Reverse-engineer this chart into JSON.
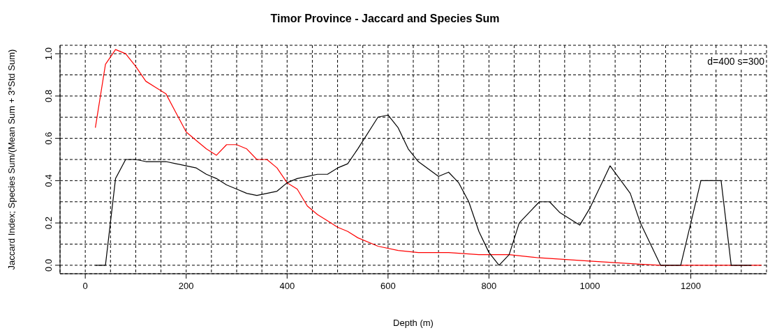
{
  "chart_data": {
    "type": "line",
    "title": "Timor Province - Jaccard and Species Sum",
    "xlabel": "Depth (m)",
    "ylabel": "Jaccard Index; Species Sum/(Mean Sum + 3*Std Sum)",
    "annotations": [
      "d=400 s=300"
    ],
    "series": [
      {
        "color": "#ff0000",
        "x": [
          20,
          40,
          60,
          80,
          100,
          120,
          140,
          160,
          180,
          200,
          220,
          240,
          260,
          280,
          300,
          320,
          340,
          360,
          380,
          400,
          420,
          440,
          460,
          480,
          500,
          520,
          540,
          580,
          620,
          660,
          720,
          780,
          840,
          900,
          1000,
          1100,
          1140,
          1200,
          1260,
          1340
        ],
        "values": [
          0.65,
          0.95,
          1.02,
          1.0,
          0.94,
          0.87,
          0.84,
          0.81,
          0.72,
          0.63,
          0.59,
          0.55,
          0.52,
          0.57,
          0.57,
          0.55,
          0.5,
          0.5,
          0.46,
          0.39,
          0.36,
          0.28,
          0.24,
          0.21,
          0.18,
          0.16,
          0.13,
          0.09,
          0.07,
          0.06,
          0.06,
          0.05,
          0.05,
          0.035,
          0.02,
          0.005,
          0,
          0,
          0,
          0
        ]
      },
      {
        "color": "#000000",
        "x": [
          20,
          40,
          60,
          80,
          100,
          120,
          140,
          160,
          180,
          200,
          220,
          240,
          260,
          280,
          300,
          320,
          340,
          360,
          380,
          400,
          420,
          440,
          460,
          480,
          500,
          520,
          540,
          580,
          600,
          620,
          640,
          660,
          700,
          720,
          740,
          760,
          780,
          800,
          820,
          840,
          860,
          880,
          900,
          920,
          940,
          980,
          1000,
          1040,
          1080,
          1100,
          1140,
          1180,
          1220,
          1260,
          1280,
          1320
        ],
        "values": [
          0,
          0,
          0.41,
          0.5,
          0.5,
          0.49,
          0.49,
          0.49,
          0.48,
          0.47,
          0.46,
          0.43,
          0.41,
          0.38,
          0.36,
          0.34,
          0.33,
          0.34,
          0.35,
          0.39,
          0.41,
          0.42,
          0.43,
          0.43,
          0.46,
          0.48,
          0.55,
          0.7,
          0.71,
          0.65,
          0.55,
          0.49,
          0.42,
          0.44,
          0.39,
          0.3,
          0.16,
          0.06,
          0,
          0.05,
          0.2,
          0.25,
          0.3,
          0.3,
          0.25,
          0.19,
          0.27,
          0.47,
          0.34,
          0.2,
          0,
          0,
          0.4,
          0.4,
          0,
          0
        ]
      }
    ],
    "xlim": [
      -50,
      1350
    ],
    "xticks": [
      0,
      {
        "value": 50,
        "label": null
      },
      {
        "value": 100,
        "label": null
      },
      {
        "value": 150,
        "label": null
      },
      200,
      {
        "value": 250,
        "label": null
      },
      {
        "value": 300,
        "label": null
      },
      {
        "value": 350,
        "label": null
      },
      400,
      {
        "value": 450,
        "label": null
      },
      {
        "value": 500,
        "label": null
      },
      {
        "value": 550,
        "label": null
      },
      600,
      {
        "value": 650,
        "label": null
      },
      {
        "value": 700,
        "label": null
      },
      {
        "value": 750,
        "label": null
      },
      800,
      {
        "value": 850,
        "label": null
      },
      {
        "value": 900,
        "label": null
      },
      {
        "value": 950,
        "label": null
      },
      1000,
      {
        "value": 1050,
        "label": null
      },
      {
        "value": 1100,
        "label": null
      },
      {
        "value": 1150,
        "label": null
      },
      1200,
      {
        "value": 1250,
        "label": null
      },
      {
        "value": 1300,
        "label": null
      }
    ],
    "ylim": [
      -0.04,
      1.04
    ],
    "yticks": [
      {
        "value": 0,
        "label": "0.0"
      },
      {
        "value": 0.1,
        "label": null
      },
      {
        "value": 0.2,
        "label": "0.2"
      },
      {
        "value": 0.3,
        "label": null
      },
      {
        "value": 0.4,
        "label": "0.4"
      },
      {
        "value": 0.5,
        "label": null
      },
      {
        "value": 0.6,
        "label": "0.6"
      },
      {
        "value": 0.7,
        "label": null
      },
      {
        "value": 0.8,
        "label": "0.8"
      },
      {
        "value": 0.9,
        "label": null
      },
      {
        "value": 1,
        "label": "1.0"
      }
    ],
    "grid": true,
    "legend": false,
    "marker": "none",
    "line_style": "solid"
  }
}
